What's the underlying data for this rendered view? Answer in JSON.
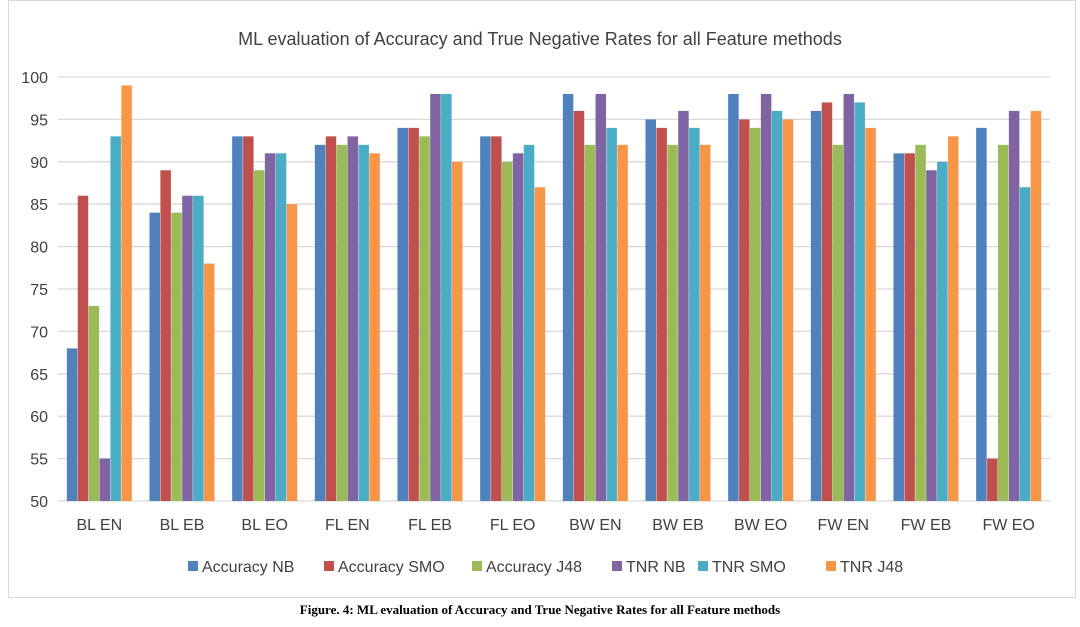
{
  "chart_data": {
    "type": "bar",
    "title": "ML evaluation of Accuracy and True Negative Rates for all Feature methods",
    "xlabel": "",
    "ylabel": "",
    "ylim": [
      50,
      100
    ],
    "yticks": [
      50,
      55,
      60,
      65,
      70,
      75,
      80,
      85,
      90,
      95,
      100
    ],
    "grid": true,
    "legend_position": "bottom",
    "categories": [
      "BL EN",
      "BL  EB",
      "BL EO",
      "FL EN",
      "FL EB",
      "FL EO",
      "BW EN",
      "BW EB",
      "BW EO",
      "FW EN",
      "FW EB",
      "FW EO"
    ],
    "series": [
      {
        "name": "Accuracy NB",
        "color": "#4f81bd",
        "values": [
          68,
          84,
          93,
          92,
          94,
          93,
          98,
          95,
          98,
          96,
          91,
          94
        ]
      },
      {
        "name": "Accuracy SMO",
        "color": "#c0504d",
        "values": [
          86,
          89,
          93,
          93,
          94,
          93,
          96,
          94,
          95,
          97,
          91,
          55
        ]
      },
      {
        "name": "Accuracy J48",
        "color": "#9bbb59",
        "values": [
          73,
          84,
          89,
          92,
          93,
          90,
          92,
          92,
          94,
          92,
          92,
          92
        ]
      },
      {
        "name": "TNR NB",
        "color": "#8064a2",
        "values": [
          55,
          86,
          91,
          93,
          98,
          91,
          98,
          96,
          98,
          98,
          89,
          96
        ]
      },
      {
        "name": "TNR SMO",
        "color": "#4bacc6",
        "values": [
          93,
          86,
          91,
          92,
          98,
          92,
          94,
          94,
          96,
          97,
          90,
          87
        ]
      },
      {
        "name": "TNR J48",
        "color": "#f79646",
        "values": [
          99,
          78,
          85,
          91,
          90,
          87,
          92,
          92,
          95,
          94,
          93,
          96
        ]
      }
    ]
  },
  "caption": "Figure. 4: ML evaluation of Accuracy and True Negative Rates for all Feature methods"
}
